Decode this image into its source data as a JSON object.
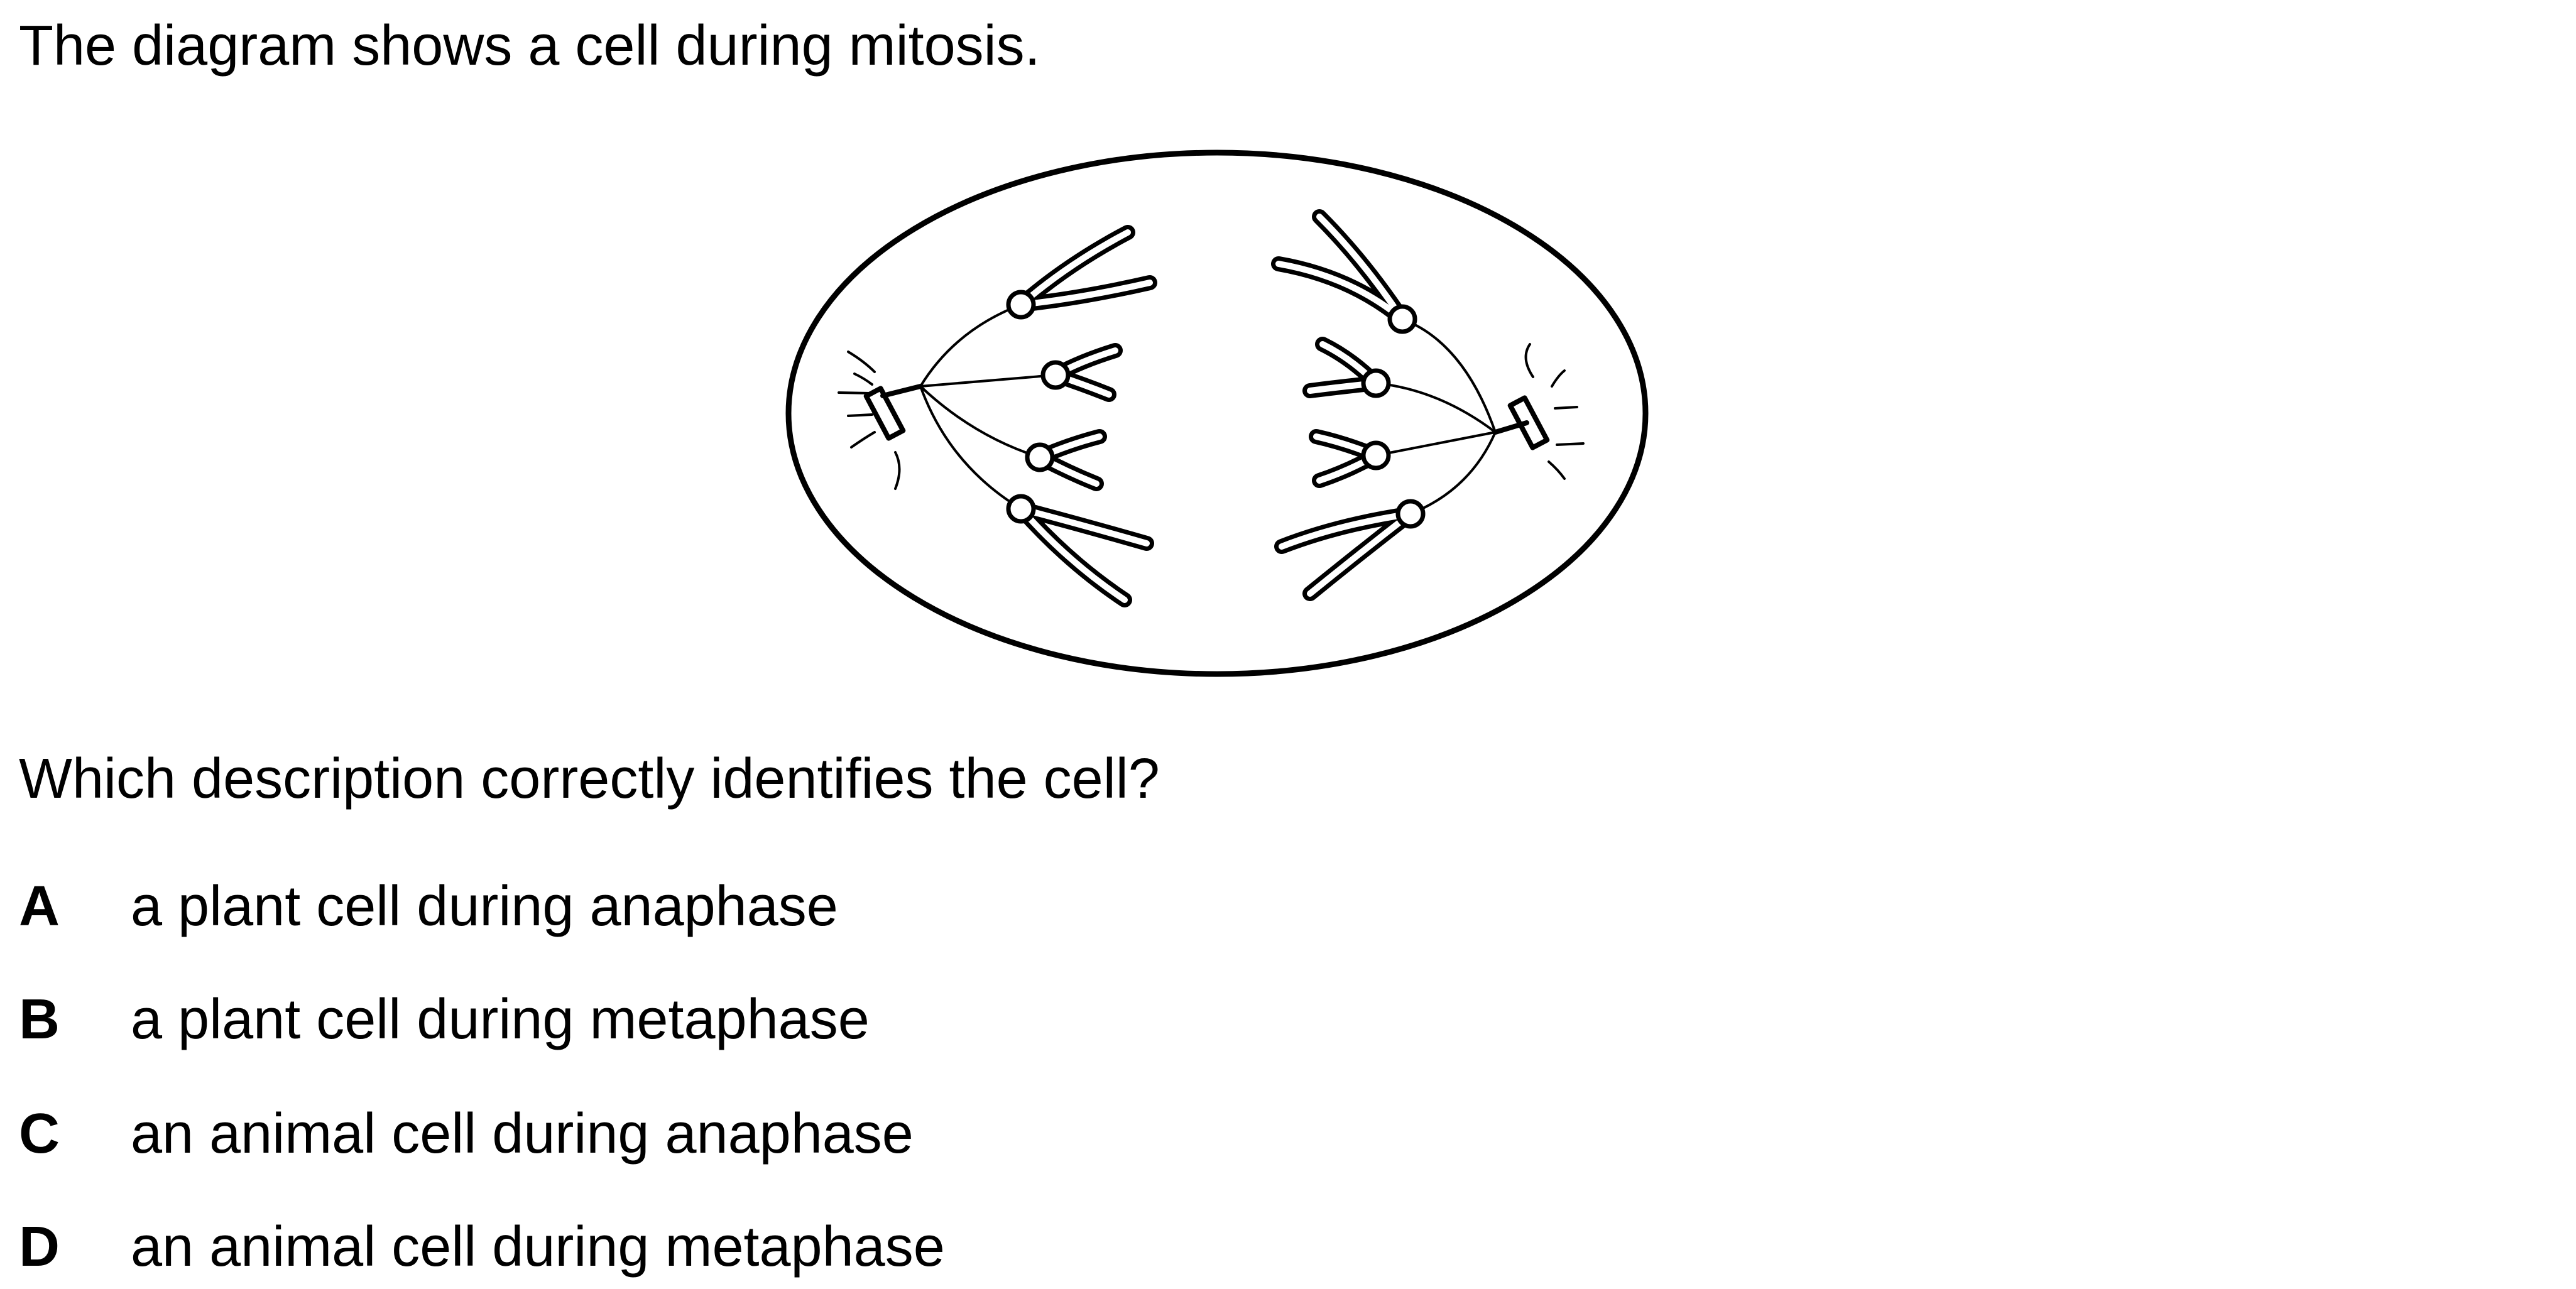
{
  "question": {
    "intro": "The diagram shows a cell during mitosis.",
    "prompt": "Which description correctly identifies the cell?",
    "options": [
      {
        "letter": "A",
        "text": "a plant cell during anaphase"
      },
      {
        "letter": "B",
        "text": "a plant cell during metaphase"
      },
      {
        "letter": "C",
        "text": "an animal cell during anaphase"
      },
      {
        "letter": "D",
        "text": "an animal cell during metaphase"
      }
    ]
  }
}
